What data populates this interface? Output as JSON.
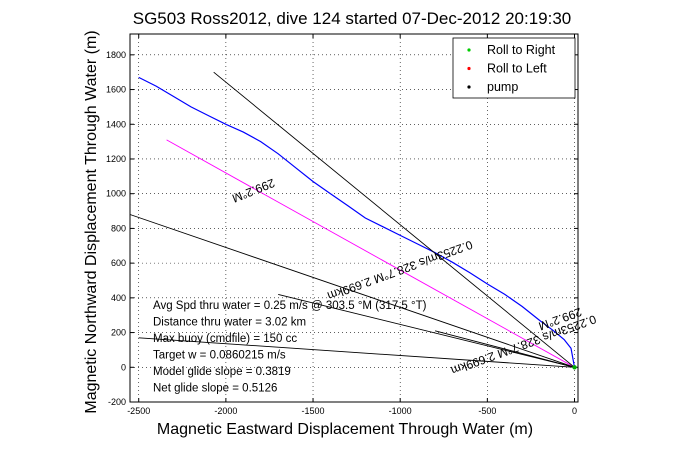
{
  "chart_data": {
    "type": "line",
    "title": "SG503 Ross2012, dive 124 started 07-Dec-2012 20:19:30",
    "xlabel": "Magnetic Eastward Displacement Through Water (m)",
    "ylabel": "Magnetic Northward Displacement Through Water (m)",
    "xlim": [
      -2550,
      20
    ],
    "ylim": [
      -200,
      1920
    ],
    "xticks": [
      -2500,
      -2000,
      -1500,
      -1000,
      -500,
      0
    ],
    "yticks": [
      -200,
      0,
      200,
      400,
      600,
      800,
      1000,
      1200,
      1400,
      1600,
      1800
    ],
    "grid": true,
    "legend_position": "top-right",
    "legend": [
      {
        "label": "Roll to Right",
        "color": "#00cc00",
        "marker": "dot"
      },
      {
        "label": "Roll to Left",
        "color": "#ff0000",
        "marker": "dot"
      },
      {
        "label": "pump",
        "color": "#000000",
        "marker": "dot"
      }
    ],
    "series": [
      {
        "color": "#0000ff",
        "style": "line",
        "x": [
          -2500,
          -2400,
          -2300,
          -2200,
          -2100,
          -2000,
          -1900,
          -1800,
          -1700,
          -1600,
          -1500,
          -1400,
          -1300,
          -1200,
          -1100,
          -1000,
          -900,
          -800,
          -700,
          -600,
          -500,
          -400,
          -300,
          -200,
          -120,
          -60,
          -20,
          0
        ],
        "y": [
          1670,
          1620,
          1560,
          1500,
          1450,
          1400,
          1355,
          1300,
          1230,
          1150,
          1070,
          1000,
          930,
          860,
          810,
          760,
          710,
          660,
          605,
          545,
          480,
          420,
          350,
          270,
          210,
          160,
          110,
          0
        ]
      },
      {
        "color": "#ff00ff",
        "style": "line",
        "x": [
          -2340,
          0
        ],
        "y": [
          1310,
          0
        ]
      },
      {
        "color": "#000000",
        "style": "line",
        "x": [
          -2070,
          0
        ],
        "y": [
          1700,
          0
        ]
      },
      {
        "color": "#000000",
        "style": "line",
        "x": [
          -2550,
          0
        ],
        "y": [
          880,
          0
        ]
      },
      {
        "color": "#000000",
        "style": "line",
        "x": [
          -1700,
          0
        ],
        "y": [
          420,
          0
        ]
      },
      {
        "color": "#000000",
        "style": "line",
        "x": [
          -800,
          0
        ],
        "y": [
          210,
          0
        ]
      },
      {
        "color": "#000000",
        "style": "line",
        "x": [
          -2500,
          0
        ],
        "y": [
          170,
          0
        ]
      }
    ],
    "annotations": [
      {
        "text": "299.2°M",
        "x": -1850,
        "y": 1040,
        "rotate": 158
      },
      {
        "text": "0.2253m/s 328.7°M 2.699km",
        "x": -1010,
        "y": 580,
        "rotate": 160
      },
      {
        "text": "0.2253m/s 328.7°M 2.699km",
        "x": -300,
        "y": 150,
        "rotate": 160
      },
      {
        "text": "299.2°M",
        "x": -90,
        "y": 300,
        "rotate": 160
      }
    ],
    "stats": [
      "Avg Spd thru water = 0.25 m/s @ 303.5 °M (317.5 °T)",
      "Distance thru water = 3.02 km",
      "Max buoy (cmdfile) = 150 cc",
      "Target w = 0.0860215 m/s",
      "Model glide slope = 0.3819",
      "Net glide slope = 0.5126"
    ]
  }
}
